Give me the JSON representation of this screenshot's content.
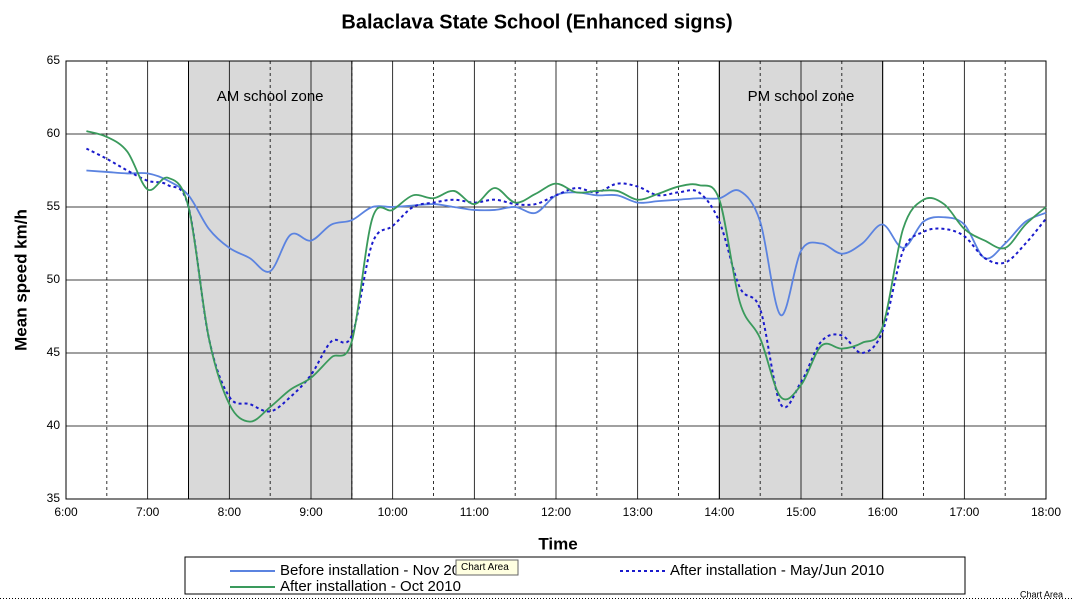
{
  "chart_data": {
    "type": "line",
    "title": "Balaclava State School (Enhanced signs)",
    "xlabel": "Time",
    "ylabel": "Mean speed km/h",
    "xlim": [
      6,
      18
    ],
    "ylim": [
      35,
      65
    ],
    "xticks": [
      {
        "value": 6,
        "label": "6:00"
      },
      {
        "value": 7,
        "label": "7:00"
      },
      {
        "value": 8,
        "label": "8:00"
      },
      {
        "value": 9,
        "label": "9:00"
      },
      {
        "value": 10,
        "label": "10:00"
      },
      {
        "value": 11,
        "label": "11:00"
      },
      {
        "value": 12,
        "label": "12:00"
      },
      {
        "value": 13,
        "label": "13:00"
      },
      {
        "value": 14,
        "label": "14:00"
      },
      {
        "value": 15,
        "label": "15:00"
      },
      {
        "value": 16,
        "label": "16:00"
      },
      {
        "value": 17,
        "label": "17:00"
      },
      {
        "value": 18,
        "label": "18:00"
      }
    ],
    "xminor_ticks": [
      6.5,
      7.5,
      8.5,
      9.5,
      10.5,
      11.5,
      12.5,
      13.5,
      14.5,
      15.5,
      16.5,
      17.5
    ],
    "yticks": [
      35,
      40,
      45,
      50,
      55,
      60,
      65
    ],
    "grid": true,
    "zones": [
      {
        "label": "AM school zone",
        "start": 7.5,
        "end": 9.5
      },
      {
        "label": "PM school zone",
        "start": 14,
        "end": 16
      }
    ],
    "x": [
      6.25,
      6.5,
      6.75,
      7,
      7.25,
      7.5,
      7.75,
      8,
      8.25,
      8.5,
      8.75,
      9,
      9.25,
      9.5,
      9.75,
      10,
      10.25,
      10.5,
      10.75,
      11,
      11.25,
      11.5,
      11.75,
      12,
      12.25,
      12.5,
      12.75,
      13,
      13.25,
      13.5,
      13.75,
      14,
      14.25,
      14.5,
      14.75,
      15,
      15.25,
      15.5,
      15.75,
      16,
      16.25,
      16.5,
      16.75,
      17,
      17.25,
      17.5,
      17.75,
      18
    ],
    "series": [
      {
        "name": "Before installation - Nov 2009",
        "color": "#5b83e0",
        "dash": "solid",
        "values": [
          57.5,
          57.4,
          57.3,
          57.3,
          56.8,
          55.8,
          53.5,
          52.2,
          51.5,
          50.6,
          53.1,
          52.7,
          53.8,
          54.1,
          55.0,
          55.0,
          55.1,
          55.2,
          55.0,
          54.8,
          54.8,
          55.0,
          54.6,
          55.8,
          56.0,
          55.8,
          55.8,
          55.3,
          55.4,
          55.5,
          55.6,
          55.6,
          56.1,
          54.0,
          47.6,
          52.0,
          52.5,
          51.8,
          52.5,
          53.8,
          52.2,
          54.0,
          54.3,
          53.8,
          51.5,
          52.5,
          54.0,
          54.6
        ]
      },
      {
        "name": "After installation - May/Jun 2010",
        "color": "#1a1acc",
        "dash": "dotted",
        "values": [
          59.0,
          58.3,
          57.5,
          56.8,
          56.5,
          55.0,
          46.0,
          42.0,
          41.5,
          41.0,
          42.0,
          43.5,
          45.8,
          46.2,
          52.5,
          53.7,
          55.0,
          55.3,
          55.5,
          55.3,
          55.5,
          55.2,
          55.2,
          55.8,
          56.3,
          56.0,
          56.6,
          56.4,
          55.8,
          56.0,
          56.0,
          54.0,
          49.5,
          48.0,
          41.5,
          43.0,
          45.8,
          46.2,
          45.0,
          46.5,
          52.0,
          53.3,
          53.5,
          53.0,
          51.5,
          51.2,
          52.5,
          54.2
        ]
      },
      {
        "name": "After installation - Oct 2010",
        "color": "#3a9a5c",
        "dash": "solid",
        "values": [
          60.2,
          59.8,
          58.8,
          56.2,
          57.0,
          55.0,
          46.0,
          41.5,
          40.3,
          41.3,
          42.5,
          43.3,
          44.7,
          45.8,
          54.2,
          54.8,
          55.8,
          55.6,
          56.1,
          55.2,
          56.3,
          55.3,
          55.9,
          56.6,
          56.0,
          56.1,
          56.1,
          55.5,
          55.9,
          56.4,
          56.5,
          55.5,
          48.5,
          46.0,
          42.0,
          42.8,
          45.5,
          45.3,
          45.7,
          46.8,
          53.5,
          55.5,
          55.2,
          53.5,
          52.7,
          52.2,
          53.8,
          55.0
        ]
      }
    ]
  },
  "tooltip": "Chart Area",
  "status_label": "Chart Area"
}
